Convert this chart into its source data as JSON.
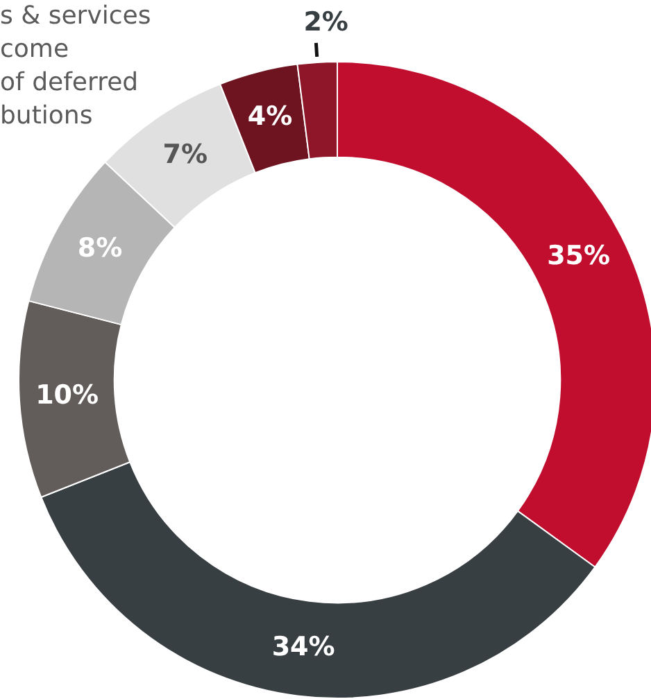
{
  "chart_data": {
    "type": "donut",
    "categories": [
      null,
      null,
      null,
      null,
      null,
      null,
      null
    ],
    "values": [
      35,
      34,
      10,
      8,
      7,
      4,
      2
    ],
    "colors": [
      "#c20e2e",
      "#383f43",
      "#625d5a",
      "#b5b5b5",
      "#e0e0e0",
      "#6e1420",
      "#8e1628"
    ],
    "value_labels": [
      "35%",
      "34%",
      "10%",
      "8%",
      "7%",
      "4%",
      "2%"
    ],
    "legend": false,
    "annotations": [
      "s & services",
      "come",
      "of deferred butions"
    ]
  }
}
